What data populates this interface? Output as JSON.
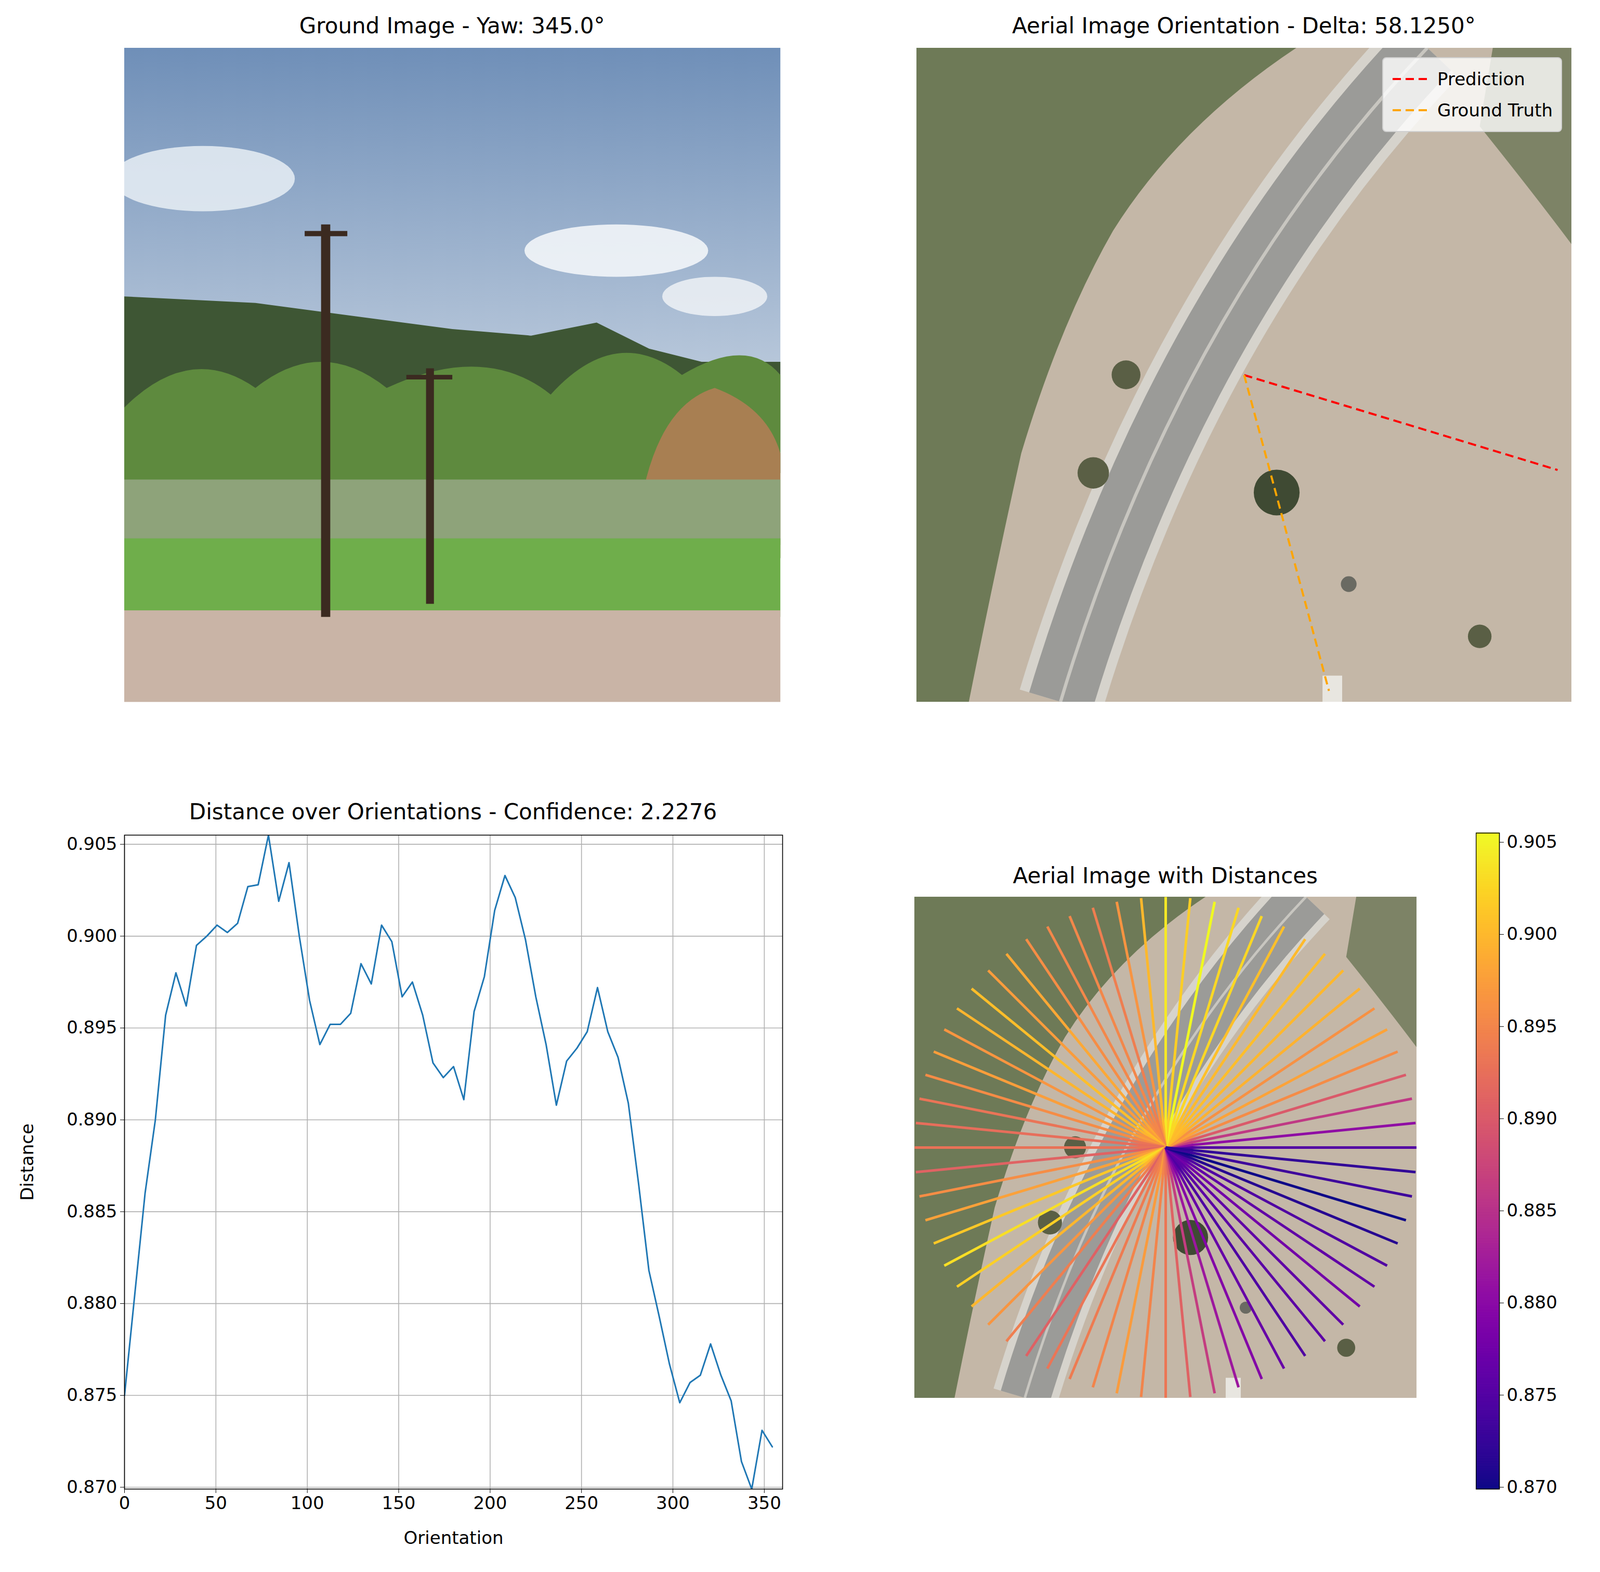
{
  "chart_data": [
    {
      "type": "image",
      "title": "Ground Image - Yaw: 345.0°"
    },
    {
      "type": "radial",
      "title": "Aerial Image Orientation - Delta: 58.1250°",
      "series": [
        {
          "name": "Prediction",
          "color": "#ff0000",
          "line_style": "dashed",
          "values": [
            343.125
          ]
        },
        {
          "name": "Ground Truth",
          "color": "#ffa500",
          "line_style": "dashed",
          "values": [
            285.0
          ]
        }
      ],
      "legend": "upper right"
    },
    {
      "type": "line",
      "title": "Distance over Orientations - Confidence: 2.2276",
      "x_label": "Orientation",
      "y_label": "Distance",
      "color": "#1f77b4",
      "grid": true,
      "x": [
        0,
        5.625,
        11.25,
        16.875,
        22.5,
        28.125,
        33.75,
        39.375,
        45,
        50.625,
        56.25,
        61.875,
        67.5,
        73.125,
        78.75,
        84.375,
        90,
        95.625,
        101.25,
        106.875,
        112.5,
        118.125,
        123.75,
        129.375,
        135,
        140.625,
        146.25,
        151.875,
        157.5,
        163.125,
        168.75,
        174.375,
        180,
        185.625,
        191.25,
        196.875,
        202.5,
        208.125,
        213.75,
        219.375,
        225,
        230.625,
        236.25,
        241.875,
        247.5,
        253.125,
        258.75,
        264.375,
        270,
        275.625,
        281.25,
        286.875,
        292.5,
        298.125,
        303.75,
        309.375,
        315,
        320.625,
        326.25,
        331.875,
        337.5,
        343.125,
        348.75,
        354.375
      ],
      "values": [
        0.875,
        0.8805,
        0.886,
        0.89,
        0.8957,
        0.898,
        0.8962,
        0.8995,
        0.9,
        0.9006,
        0.9002,
        0.9007,
        0.9027,
        0.9028,
        0.9055,
        0.9019,
        0.904,
        0.9,
        0.8965,
        0.8941,
        0.8952,
        0.8952,
        0.8958,
        0.8985,
        0.8974,
        0.9006,
        0.8997,
        0.8967,
        0.8975,
        0.8957,
        0.8931,
        0.8923,
        0.8929,
        0.8911,
        0.8959,
        0.8978,
        0.9014,
        0.9033,
        0.9021,
        0.8998,
        0.8967,
        0.8941,
        0.8908,
        0.8932,
        0.8939,
        0.8948,
        0.8972,
        0.8948,
        0.8934,
        0.8909,
        0.8865,
        0.8818,
        0.8793,
        0.8767,
        0.8746,
        0.8757,
        0.8761,
        0.8778,
        0.8761,
        0.8747,
        0.8714,
        0.8699,
        0.8731,
        0.8722
      ],
      "xlim": [
        0,
        360
      ],
      "ylim": [
        0.8699,
        0.9055
      ],
      "xticks": [
        0,
        50,
        100,
        150,
        200,
        250,
        300,
        350
      ],
      "yticks": [
        {
          "value": 0.87,
          "label": "0.870"
        },
        0.875,
        {
          "value": 0.88,
          "label": "0.880"
        },
        0.885,
        {
          "value": 0.89,
          "label": "0.890"
        },
        0.895,
        {
          "value": 0.9,
          "label": "0.900"
        },
        0.905
      ]
    },
    {
      "type": "radial",
      "title": "Aerial Image with Distances",
      "x": [
        0,
        5.625,
        11.25,
        16.875,
        22.5,
        28.125,
        33.75,
        39.375,
        45,
        50.625,
        56.25,
        61.875,
        67.5,
        73.125,
        78.75,
        84.375,
        90,
        95.625,
        101.25,
        106.875,
        112.5,
        118.125,
        123.75,
        129.375,
        135,
        140.625,
        146.25,
        151.875,
        157.5,
        163.125,
        168.75,
        174.375,
        180,
        185.625,
        191.25,
        196.875,
        202.5,
        208.125,
        213.75,
        219.375,
        225,
        230.625,
        236.25,
        241.875,
        247.5,
        253.125,
        258.75,
        264.375,
        270,
        275.625,
        281.25,
        286.875,
        292.5,
        298.125,
        303.75,
        309.375,
        315,
        320.625,
        326.25,
        331.875,
        337.5,
        343.125,
        348.75,
        354.375
      ],
      "values": [
        0.875,
        0.8805,
        0.886,
        0.89,
        0.8957,
        0.898,
        0.8962,
        0.8995,
        0.9,
        0.9006,
        0.9002,
        0.9007,
        0.9027,
        0.9028,
        0.9055,
        0.9019,
        0.904,
        0.9,
        0.8965,
        0.8941,
        0.8952,
        0.8952,
        0.8958,
        0.8985,
        0.8974,
        0.9006,
        0.8997,
        0.8967,
        0.8975,
        0.8957,
        0.8931,
        0.8923,
        0.8929,
        0.8911,
        0.8959,
        0.8978,
        0.9014,
        0.9033,
        0.9021,
        0.8998,
        0.8967,
        0.8941,
        0.8908,
        0.8932,
        0.8939,
        0.8948,
        0.8972,
        0.8948,
        0.8934,
        0.8909,
        0.8865,
        0.8818,
        0.8793,
        0.8767,
        0.8746,
        0.8757,
        0.8761,
        0.8778,
        0.8761,
        0.8747,
        0.8714,
        0.8699,
        0.8731,
        0.8722
      ],
      "colorbar_lim": [
        0.8699,
        0.9055
      ],
      "colorbar_ticks": [
        {
          "value": 0.87,
          "label": "0.870"
        },
        0.875,
        {
          "value": 0.88,
          "label": "0.880"
        },
        0.885,
        {
          "value": 0.89,
          "label": "0.890"
        },
        0.895,
        {
          "value": 0.9,
          "label": "0.900"
        },
        0.905
      ]
    }
  ]
}
